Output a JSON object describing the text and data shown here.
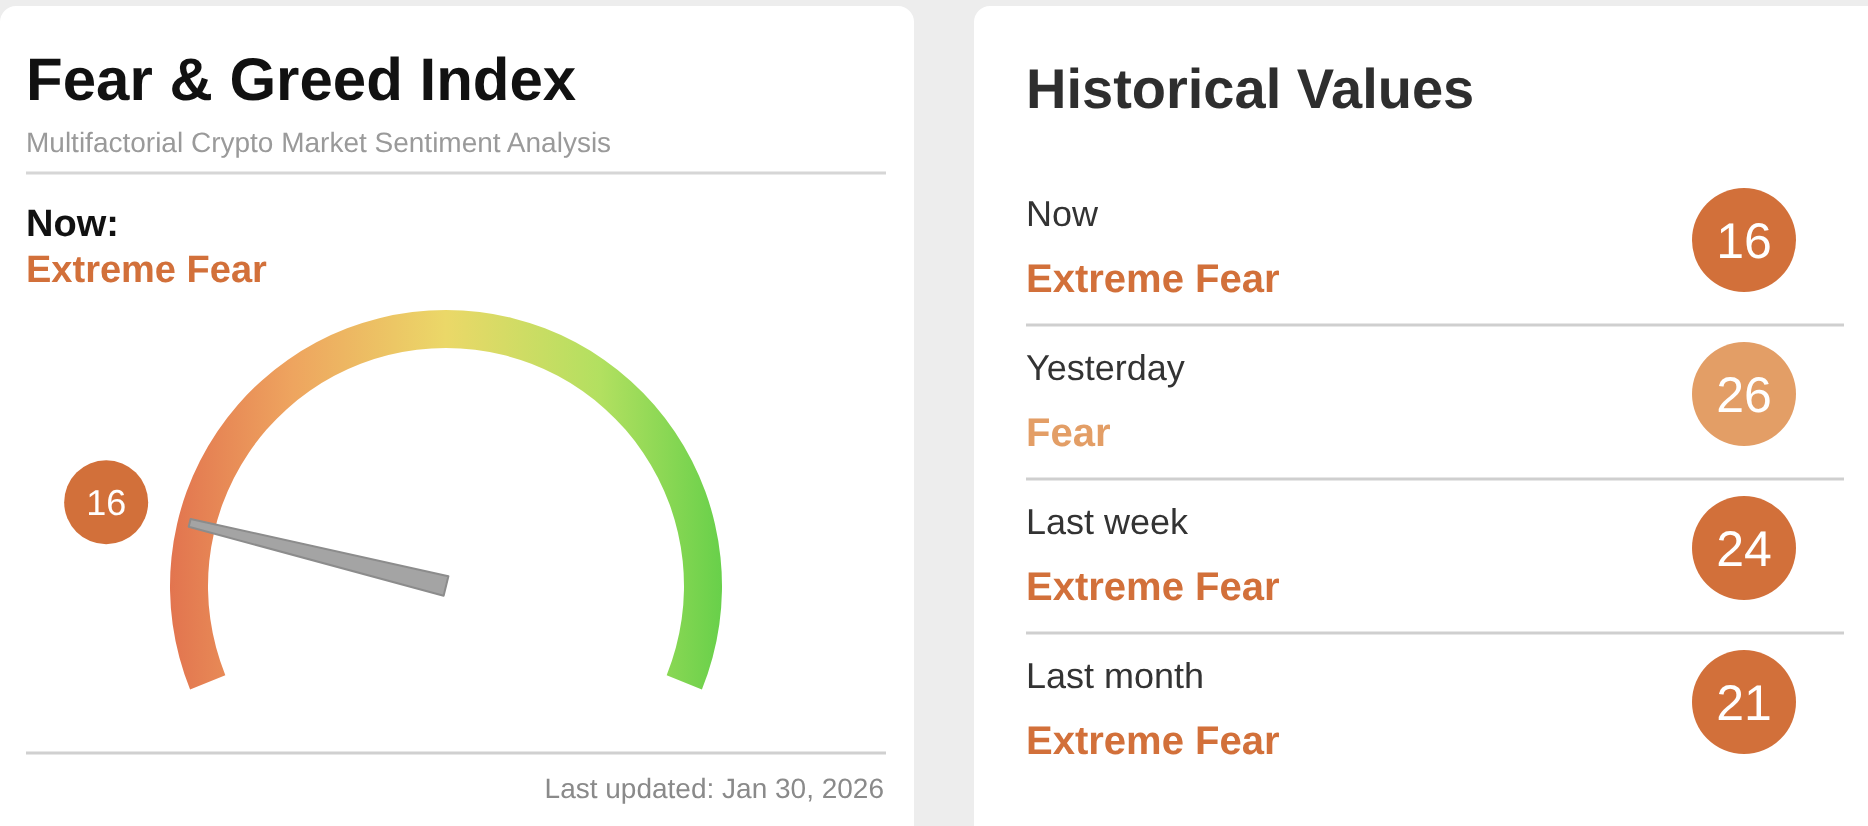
{
  "chart_data": [
    {
      "type": "other",
      "title": "Fear & Greed Index",
      "subtitle": "Multifactorial Crypto Market Sentiment Analysis",
      "values": [
        16
      ],
      "color": "#d2703a",
      "data_labels": true,
      "annotations": [
        "Now:",
        "Extreme Fear",
        "Last updated: Jan 30, 2026"
      ]
    },
    {
      "type": "other",
      "title": "Historical Values",
      "categories": [
        "Now",
        "Yesterday",
        "Last week",
        "Last month"
      ],
      "values": [
        16,
        26,
        24,
        21
      ],
      "colors": [
        "#d2703a",
        "#e39e66",
        "#d2703a",
        "#d2703a"
      ],
      "data_labels": true,
      "annotations": [
        "Extreme Fear",
        "Fear",
        "Extreme Fear",
        "Extreme Fear"
      ]
    }
  ]
}
